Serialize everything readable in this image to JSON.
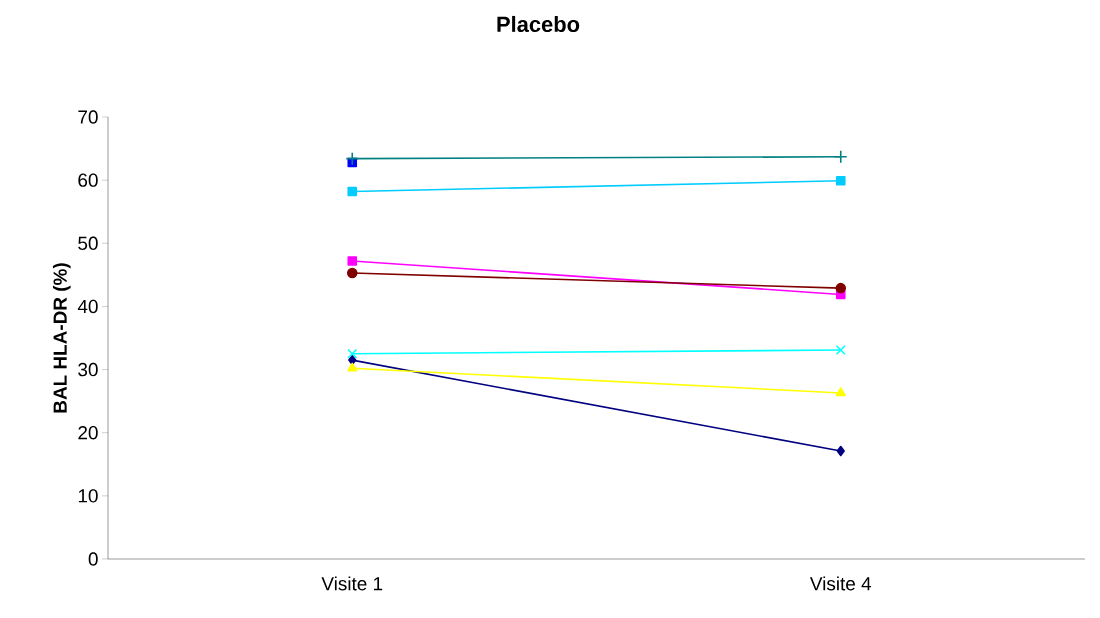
{
  "chart_data": {
    "type": "line",
    "title": "Placebo",
    "ylabel": "BAL HLA-DR (%)",
    "categories": [
      "Visite 1",
      "Visite 4"
    ],
    "ylim": [
      0,
      70
    ],
    "yticks": [
      0,
      10,
      20,
      30,
      40,
      50,
      60,
      70
    ],
    "series": [
      {
        "color": "#000080",
        "values": [
          31.5,
          17.1
        ],
        "marker": "diamond"
      },
      {
        "color": "#ff00ff",
        "values": [
          47.2,
          41.9
        ],
        "marker": "square"
      },
      {
        "color": "#ffff00",
        "values": [
          30.2,
          26.3
        ],
        "marker": "triangle"
      },
      {
        "color": "#00ffff",
        "values": [
          32.5,
          33.1
        ],
        "marker": "cross"
      },
      {
        "color": "#0000ff",
        "values": [
          62.8,
          null
        ],
        "marker": "square"
      },
      {
        "color": "#00ccff",
        "values": [
          58.2,
          59.9
        ],
        "marker": "square"
      },
      {
        "color": "#008080",
        "values": [
          63.4,
          63.7
        ],
        "marker": "plus"
      },
      {
        "color": "#800000",
        "values": [
          45.3,
          42.9
        ],
        "marker": "circle"
      }
    ]
  }
}
